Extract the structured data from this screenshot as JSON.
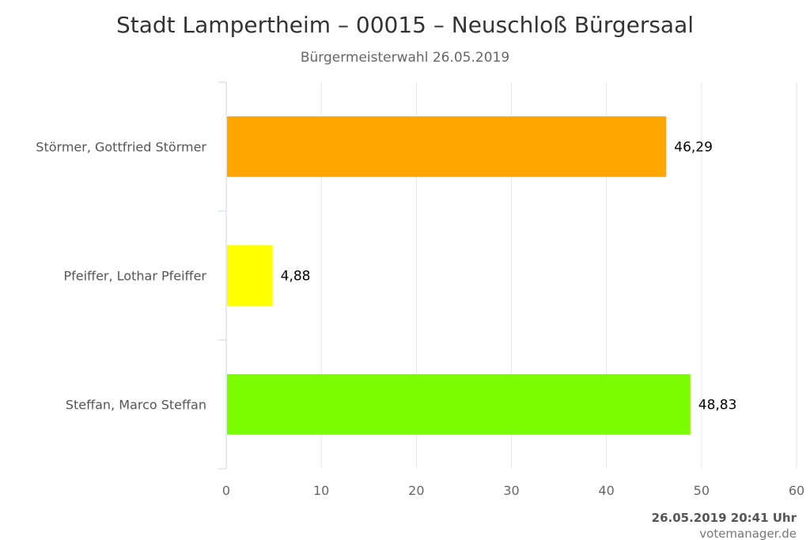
{
  "chart_data": {
    "type": "bar",
    "orientation": "horizontal",
    "title": "Stadt Lampertheim – 00015 – Neuschloß Bürgersaal",
    "subtitle": "Bürgermeisterwahl 26.05.2019",
    "categories": [
      "Störmer, Gottfried Störmer",
      "Pfeiffer, Lothar Pfeiffer",
      "Steffan, Marco Steffan"
    ],
    "values": [
      46.29,
      4.88,
      48.83
    ],
    "data_labels": [
      "46,29",
      "4,88",
      "48,83"
    ],
    "colors": [
      "#FFA500",
      "#FFFF00",
      "#7CFC00"
    ],
    "xlim": [
      0,
      60
    ],
    "xticks": [
      0,
      10,
      20,
      30,
      40,
      50,
      60
    ],
    "grid": true,
    "legend": "none"
  },
  "footer": {
    "timestamp": "26.05.2019 20:41 Uhr",
    "credit": "votemanager.de"
  },
  "colors": {
    "grid": "#e6e6e6",
    "axis": "#ccd6eb"
  }
}
